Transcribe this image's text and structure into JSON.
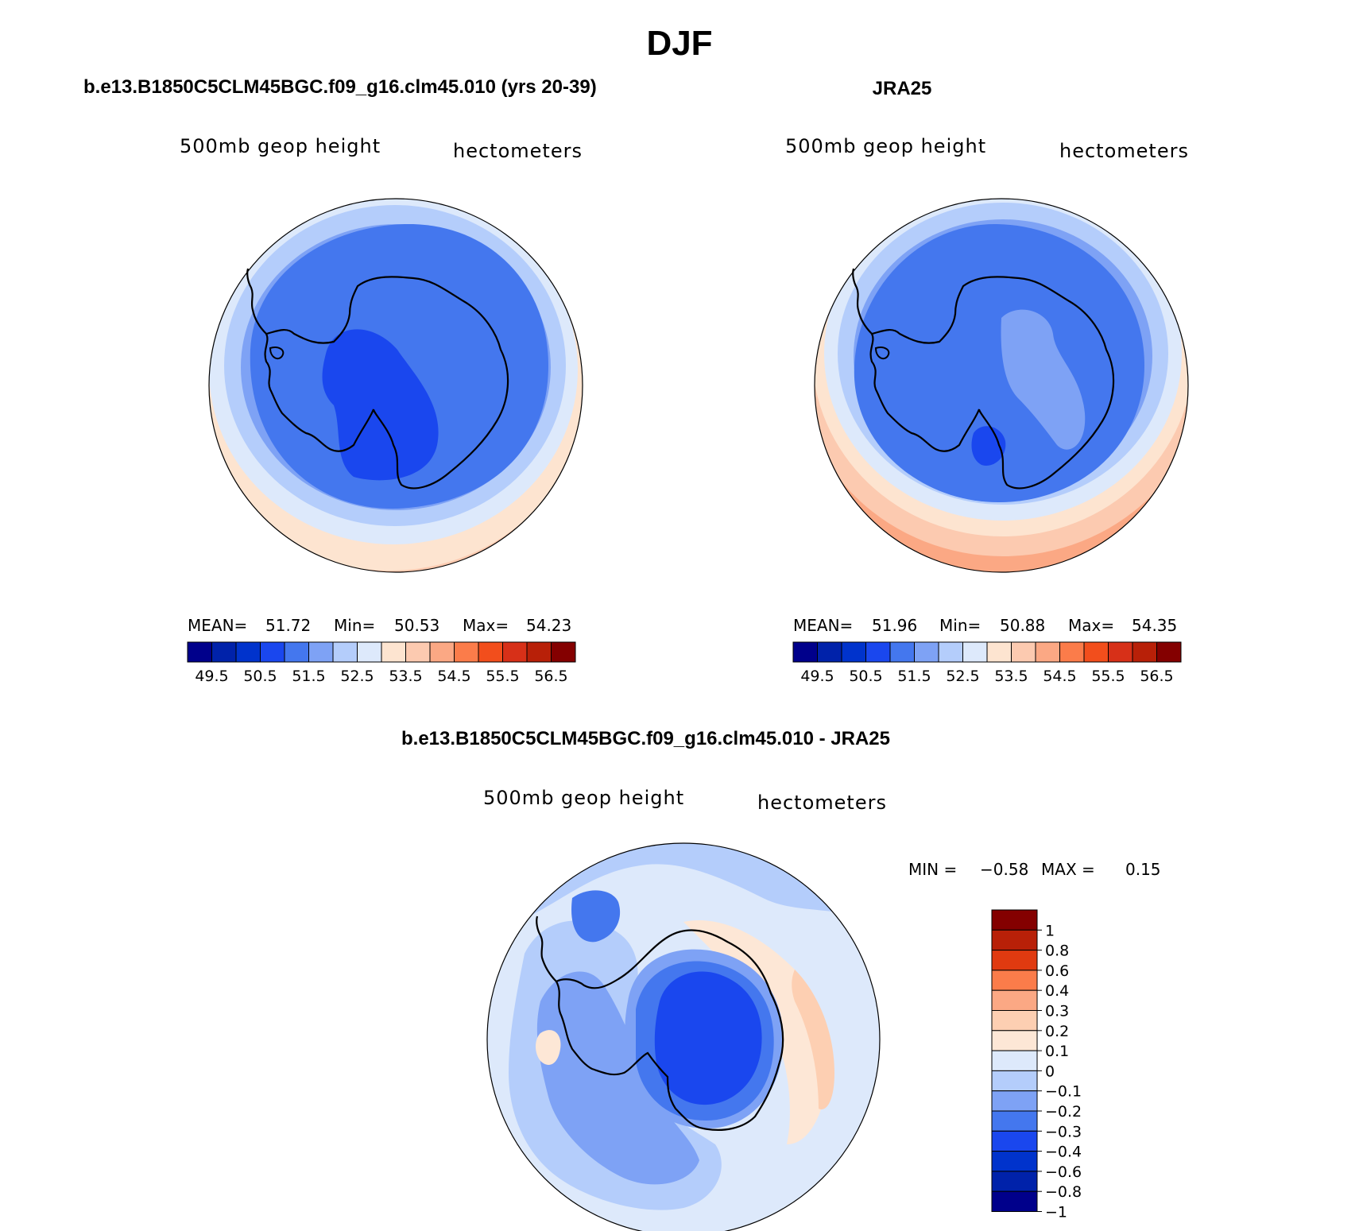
{
  "title": "DJF",
  "panels": [
    {
      "case_title": "b.e13.B1850C5CLM45BGC.f09_g16.clm45.010 (yrs 20-39)",
      "left_label": "500mb  geop  height",
      "right_label": "hectometers",
      "stats": {
        "mean_label": "MEAN=",
        "mean": "51.72",
        "min_label": "Min=",
        "min": "50.53",
        "max_label": "Max=",
        "max": "54.23"
      }
    },
    {
      "case_title": "JRA25",
      "left_label": "500mb  geop  height",
      "right_label": "hectometers",
      "stats": {
        "mean_label": "MEAN=",
        "mean": "51.96",
        "min_label": "Min=",
        "min": "50.88",
        "max_label": "Max=",
        "max": "54.35"
      }
    }
  ],
  "colorbar": {
    "colors": [
      "#00008b",
      "#0022aa",
      "#0033cc",
      "#1a47ee",
      "#4477ee",
      "#7ea2f5",
      "#b4cdfb",
      "#dde9fb",
      "#fde4d0",
      "#fccab0",
      "#fba884",
      "#fb7c4a",
      "#f24e1c",
      "#d73018",
      "#b82008",
      "#840000"
    ],
    "tick_labels": [
      "49.5",
      "50.5",
      "51.5",
      "52.5",
      "53.5",
      "54.5",
      "55.5",
      "56.5"
    ]
  },
  "diff_panel": {
    "case_title": "b.e13.B1850C5CLM45BGC.f09_g16.clm45.010 - JRA25",
    "left_label": "500mb  geop  height",
    "right_label": "hectometers",
    "min_label": "MIN =",
    "min": "−0.58",
    "max_label": "MAX =",
    "max": "0.15",
    "colorbar_colors": [
      "#840000",
      "#b82008",
      "#e03a10",
      "#fb7c4a",
      "#fba884",
      "#fdcfb2",
      "#fde7d6",
      "#dde9fb",
      "#b4cdfb",
      "#7ea2f5",
      "#4477ee",
      "#1a47ee",
      "#0033cc",
      "#0022aa",
      "#00008b"
    ],
    "colorbar_labels": [
      "1",
      "0.8",
      "0.6",
      "0.4",
      "0.3",
      "0.2",
      "0.1",
      "0",
      "−0.1",
      "−0.2",
      "−0.3",
      "−0.4",
      "−0.6",
      "−0.8",
      "−1"
    ]
  }
}
